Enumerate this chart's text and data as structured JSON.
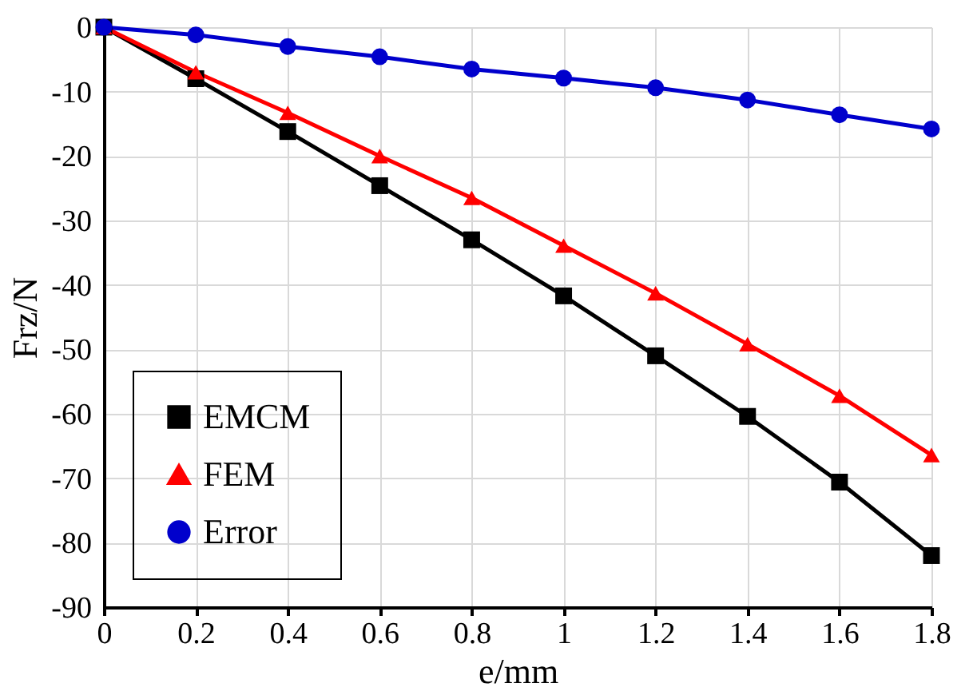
{
  "chart_data": {
    "type": "line",
    "xlabel": "e/mm",
    "ylabel": "Frz/N",
    "x": [
      0,
      0.2,
      0.4,
      0.6,
      0.8,
      1,
      1.2,
      1.4,
      1.6,
      1.8
    ],
    "series": [
      {
        "name": "EMCM",
        "color": "#000000",
        "marker": "square",
        "values": [
          0,
          -8,
          -16.2,
          -24.6,
          -33,
          -41.7,
          -51,
          -60.4,
          -70.6,
          -82
        ]
      },
      {
        "name": "FEM",
        "color": "#ff0000",
        "marker": "triangle",
        "values": [
          0,
          -7,
          -13.3,
          -20,
          -26.5,
          -33.9,
          -41.3,
          -49.2,
          -57.2,
          -66.4
        ]
      },
      {
        "name": "Error",
        "color": "#0000cc",
        "marker": "circle",
        "values": [
          0,
          -1.2,
          -3,
          -4.6,
          -6.5,
          -7.9,
          -9.4,
          -11.3,
          -13.6,
          -15.8
        ]
      }
    ],
    "xlim": [
      0,
      1.8
    ],
    "xticks": [
      0,
      0.2,
      0.4,
      0.6,
      0.8,
      1,
      1.2,
      1.4,
      1.6,
      1.8
    ],
    "ylim": [
      -90,
      0
    ],
    "yticks": [
      -90,
      -80,
      -70,
      -60,
      -50,
      -40,
      -30,
      -20,
      -10,
      0
    ],
    "grid": true,
    "legend": "bottom left",
    "line_style": "solid"
  }
}
